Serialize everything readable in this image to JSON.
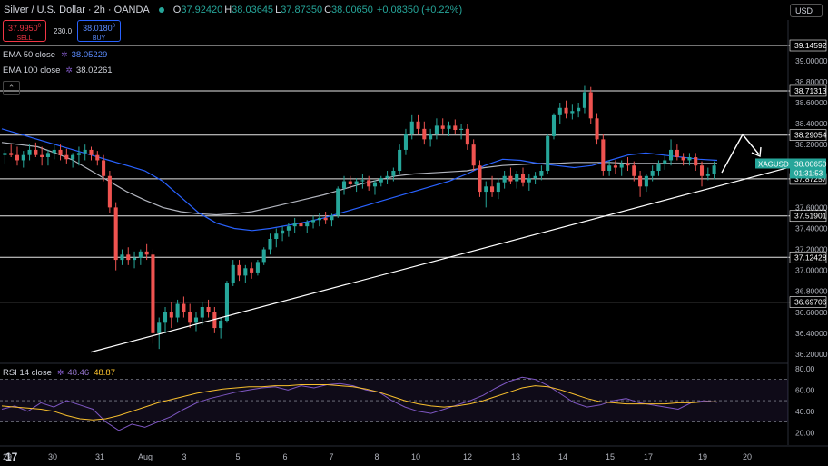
{
  "header": {
    "symbol": "Silver / U.S. Dollar · 2h · OANDA",
    "open_label": "O",
    "open": "37.92420",
    "high_label": "H",
    "high": "38.03645",
    "low_label": "L",
    "low": "37.87350",
    "close_label": "C",
    "close": "38.00650",
    "change": "+0.08350 (+0.22%)"
  },
  "trade": {
    "sell_price": "37.9950",
    "sell_sup": "0",
    "sell_label": "SELL",
    "spread": "230.0",
    "buy_price": "38.0180",
    "buy_sup": "0",
    "buy_label": "BUY"
  },
  "indicators": {
    "ema50_label": "EMA 50 close",
    "ema50_value": "38.05229",
    "ema100_label": "EMA 100 close",
    "ema100_value": "38.02261",
    "rsi_label": "RSI 14 close",
    "rsi_value": "48.46",
    "rsi_ma_value": "48.87"
  },
  "currency": "USD",
  "collapse_glyph": "⌃",
  "logo": "17",
  "colors": {
    "up": "#26a69a",
    "down": "#ef5350",
    "ema50": "#2962ff",
    "ema100": "#b2b5be",
    "rsi": "#7e57c2",
    "rsi_ma": "#f9c02d",
    "level": "#ffffff",
    "price_tag": "#26a69a"
  },
  "chart_data": [
    {
      "type": "candlestick",
      "symbol": "XAGUSD",
      "y_axis": {
        "ticks": [
          "39.00000",
          "38.80000",
          "38.60000",
          "38.40000",
          "38.20000",
          "37.60000",
          "37.40000",
          "37.20000",
          "37.00000",
          "36.80000",
          "36.60000",
          "36.40000",
          "36.20000"
        ],
        "range": [
          36.13,
          39.25
        ]
      },
      "x_axis": {
        "ticks": [
          "29",
          "30",
          "31",
          "Aug",
          "3",
          "5",
          "6",
          "7",
          "8",
          "10",
          "12",
          "13",
          "14",
          "15",
          "17",
          "19",
          "20"
        ]
      },
      "horizontal_levels": [
        39.14592,
        38.71313,
        38.29054,
        37.87257,
        37.51901,
        37.12428,
        36.69706
      ],
      "level_labels": [
        "39.14592",
        "38.71313",
        "38.29054",
        "37.87257",
        "37.51901",
        "37.12428",
        "36.69706"
      ],
      "last_price": {
        "symbol": "XAGUSD",
        "price": "38.00650",
        "countdown": "01:31:53"
      },
      "trendline": {
        "from": [
          "31",
          36.22
        ],
        "to": [
          "20",
          37.98
        ]
      },
      "projection_arrow": true,
      "ohlc": [
        [
          38.1,
          38.15,
          38.02,
          38.12
        ],
        [
          38.12,
          38.2,
          38.08,
          38.1
        ],
        [
          38.1,
          38.18,
          38.0,
          38.05
        ],
        [
          38.05,
          38.14,
          37.98,
          38.1
        ],
        [
          38.1,
          38.2,
          38.05,
          38.15
        ],
        [
          38.15,
          38.22,
          38.08,
          38.1
        ],
        [
          38.1,
          38.18,
          38.0,
          38.08
        ],
        [
          38.08,
          38.15,
          38.0,
          38.12
        ],
        [
          38.12,
          38.2,
          38.06,
          38.15
        ],
        [
          38.15,
          38.2,
          38.05,
          38.1
        ],
        [
          38.1,
          38.16,
          38.02,
          38.06
        ],
        [
          38.06,
          38.12,
          37.98,
          38.1
        ],
        [
          38.1,
          38.18,
          38.0,
          38.12
        ],
        [
          38.12,
          38.2,
          38.05,
          38.15
        ],
        [
          38.15,
          38.18,
          38.05,
          38.1
        ],
        [
          38.1,
          38.14,
          38.0,
          38.05
        ],
        [
          38.05,
          38.1,
          37.85,
          37.9
        ],
        [
          37.9,
          37.95,
          37.55,
          37.6
        ],
        [
          37.6,
          37.65,
          37.0,
          37.1
        ],
        [
          37.1,
          37.2,
          37.05,
          37.15
        ],
        [
          37.15,
          37.22,
          37.05,
          37.1
        ],
        [
          37.1,
          37.18,
          37.02,
          37.12
        ],
        [
          37.12,
          37.2,
          37.05,
          37.18
        ],
        [
          37.18,
          37.25,
          37.1,
          37.15
        ],
        [
          37.15,
          37.2,
          36.3,
          36.4
        ],
        [
          36.4,
          36.55,
          36.25,
          36.5
        ],
        [
          36.5,
          36.65,
          36.4,
          36.6
        ],
        [
          36.6,
          36.7,
          36.45,
          36.55
        ],
        [
          36.55,
          36.72,
          36.5,
          36.68
        ],
        [
          36.68,
          36.75,
          36.55,
          36.6
        ],
        [
          36.6,
          36.68,
          36.45,
          36.5
        ],
        [
          36.5,
          36.6,
          36.42,
          36.55
        ],
        [
          36.55,
          36.7,
          36.48,
          36.65
        ],
        [
          36.65,
          36.72,
          36.55,
          36.6
        ],
        [
          36.6,
          36.65,
          36.4,
          36.45
        ],
        [
          36.45,
          36.55,
          36.35,
          36.52
        ],
        [
          36.52,
          36.9,
          36.5,
          36.88
        ],
        [
          36.88,
          37.1,
          36.85,
          37.05
        ],
        [
          37.05,
          37.1,
          36.9,
          36.95
        ],
        [
          36.95,
          37.05,
          36.88,
          37.02
        ],
        [
          37.02,
          37.08,
          36.92,
          36.98
        ],
        [
          36.98,
          37.1,
          36.95,
          37.08
        ],
        [
          37.08,
          37.22,
          37.05,
          37.2
        ],
        [
          37.2,
          37.35,
          37.15,
          37.3
        ],
        [
          37.3,
          37.4,
          37.22,
          37.35
        ],
        [
          37.35,
          37.42,
          37.28,
          37.38
        ],
        [
          37.38,
          37.45,
          37.32,
          37.42
        ],
        [
          37.42,
          37.5,
          37.36,
          37.45
        ],
        [
          37.45,
          37.5,
          37.38,
          37.42
        ],
        [
          37.42,
          37.48,
          37.36,
          37.46
        ],
        [
          37.46,
          37.52,
          37.4,
          37.48
        ],
        [
          37.48,
          37.55,
          37.42,
          37.5
        ],
        [
          37.5,
          37.56,
          37.44,
          37.48
        ],
        [
          37.48,
          37.54,
          37.42,
          37.52
        ],
        [
          37.52,
          37.8,
          37.5,
          37.78
        ],
        [
          37.78,
          37.9,
          37.72,
          37.85
        ],
        [
          37.85,
          37.9,
          37.78,
          37.82
        ],
        [
          37.82,
          37.88,
          37.75,
          37.85
        ],
        [
          37.85,
          37.92,
          37.78,
          37.86
        ],
        [
          37.86,
          37.9,
          37.76,
          37.8
        ],
        [
          37.8,
          37.86,
          37.72,
          37.84
        ],
        [
          37.84,
          37.9,
          37.8,
          37.88
        ],
        [
          37.88,
          37.95,
          37.82,
          37.9
        ],
        [
          37.9,
          37.98,
          37.85,
          37.95
        ],
        [
          37.95,
          38.2,
          37.92,
          38.15
        ],
        [
          38.15,
          38.35,
          38.1,
          38.3
        ],
        [
          38.3,
          38.48,
          38.25,
          38.42
        ],
        [
          38.42,
          38.48,
          38.3,
          38.35
        ],
        [
          38.35,
          38.42,
          38.2,
          38.25
        ],
        [
          38.25,
          38.35,
          38.18,
          38.3
        ],
        [
          38.3,
          38.45,
          38.25,
          38.38
        ],
        [
          38.38,
          38.45,
          38.3,
          38.35
        ],
        [
          38.35,
          38.42,
          38.28,
          38.38
        ],
        [
          38.38,
          38.44,
          38.3,
          38.34
        ],
        [
          38.34,
          38.4,
          38.25,
          38.35
        ],
        [
          38.35,
          38.4,
          38.15,
          38.2
        ],
        [
          38.2,
          38.25,
          37.95,
          38.0
        ],
        [
          38.0,
          38.05,
          37.7,
          37.75
        ],
        [
          37.75,
          37.85,
          37.6,
          37.8
        ],
        [
          37.8,
          37.9,
          37.7,
          37.75
        ],
        [
          37.75,
          37.88,
          37.68,
          37.84
        ],
        [
          37.84,
          37.95,
          37.78,
          37.9
        ],
        [
          37.9,
          37.98,
          37.82,
          37.85
        ],
        [
          37.85,
          37.95,
          37.78,
          37.92
        ],
        [
          37.92,
          37.98,
          37.8,
          37.84
        ],
        [
          37.84,
          37.92,
          37.76,
          37.88
        ],
        [
          37.88,
          37.94,
          37.82,
          37.9
        ],
        [
          37.9,
          38.0,
          37.86,
          37.95
        ],
        [
          37.95,
          38.3,
          37.92,
          38.28
        ],
        [
          38.28,
          38.5,
          38.25,
          38.48
        ],
        [
          38.48,
          38.6,
          38.4,
          38.55
        ],
        [
          38.55,
          38.62,
          38.45,
          38.5
        ],
        [
          38.5,
          38.58,
          38.44,
          38.52
        ],
        [
          38.52,
          38.6,
          38.46,
          38.55
        ],
        [
          38.55,
          38.76,
          38.5,
          38.7
        ],
        [
          38.7,
          38.75,
          38.4,
          38.45
        ],
        [
          38.45,
          38.5,
          38.2,
          38.25
        ],
        [
          38.25,
          38.3,
          37.9,
          37.95
        ],
        [
          37.95,
          38.05,
          37.9,
          38.0
        ],
        [
          38.0,
          38.05,
          37.92,
          37.98
        ],
        [
          37.98,
          38.05,
          37.9,
          38.02
        ],
        [
          38.02,
          38.08,
          37.95,
          38.0
        ],
        [
          38.0,
          38.04,
          37.85,
          37.9
        ],
        [
          37.9,
          37.95,
          37.7,
          37.8
        ],
        [
          37.8,
          37.92,
          37.75,
          37.9
        ],
        [
          37.9,
          38.0,
          37.85,
          37.95
        ],
        [
          37.95,
          38.05,
          37.9,
          38.02
        ],
        [
          38.02,
          38.1,
          37.96,
          38.05
        ],
        [
          38.05,
          38.25,
          38.0,
          38.15
        ],
        [
          38.15,
          38.2,
          38.05,
          38.08
        ],
        [
          38.08,
          38.12,
          38.0,
          38.05
        ],
        [
          38.05,
          38.12,
          38.0,
          38.08
        ],
        [
          38.08,
          38.12,
          37.95,
          38.0
        ],
        [
          38.0,
          38.04,
          37.8,
          37.9
        ],
        [
          37.9,
          37.98,
          37.86,
          37.92
        ],
        [
          37.92,
          38.04,
          37.87,
          38.0
        ]
      ],
      "ema50": [
        38.35,
        38.3,
        38.25,
        38.2,
        38.15,
        38.1,
        38.05,
        38.0,
        37.95,
        37.85,
        37.7,
        37.55,
        37.45,
        37.4,
        37.38,
        37.4,
        37.43,
        37.46,
        37.5,
        37.55,
        37.6,
        37.65,
        37.7,
        37.75,
        37.8,
        37.85,
        37.92,
        38.0,
        38.06,
        38.05,
        38.02,
        38.0,
        37.98,
        38.0,
        38.05,
        38.1,
        38.12,
        38.1,
        38.08,
        38.06,
        38.05
      ],
      "ema100": [
        38.22,
        38.2,
        38.18,
        38.12,
        38.05,
        37.95,
        37.85,
        37.75,
        37.67,
        37.6,
        37.56,
        37.54,
        37.53,
        37.54,
        37.56,
        37.6,
        37.64,
        37.68,
        37.72,
        37.77,
        37.82,
        37.86,
        37.9,
        37.92,
        37.93,
        37.94,
        37.95,
        37.98,
        38.0,
        38.01,
        38.02,
        38.02,
        38.03,
        38.03,
        38.03,
        38.02,
        38.02,
        38.02,
        38.02,
        38.02,
        38.02
      ],
      "legend": [
        "EMA 50 close 38.05229",
        "EMA 100 close 38.02261"
      ]
    },
    {
      "type": "line",
      "name": "RSI 14 close",
      "y_axis": {
        "ticks": [
          "80.00",
          "60.00",
          "40.00",
          "20.00"
        ],
        "range": [
          10,
          85
        ]
      },
      "bands": [
        70,
        50,
        30
      ],
      "rsi": [
        42,
        45,
        40,
        48,
        44,
        50,
        46,
        42,
        30,
        22,
        28,
        25,
        30,
        35,
        42,
        48,
        52,
        55,
        58,
        60,
        62,
        63,
        60,
        64,
        62,
        65,
        66,
        64,
        60,
        58,
        50,
        44,
        40,
        38,
        42,
        46,
        50,
        55,
        62,
        68,
        72,
        70,
        64,
        56,
        48,
        44,
        46,
        50,
        52,
        48,
        46,
        44,
        42,
        48,
        50,
        48.46
      ],
      "rsi_ma": [
        45,
        44,
        43,
        42,
        40,
        36,
        33,
        32,
        33,
        36,
        40,
        44,
        48,
        51,
        54,
        57,
        59,
        61,
        62,
        63,
        63,
        64,
        64,
        65,
        65,
        65,
        64,
        63,
        61,
        58,
        54,
        50,
        47,
        45,
        44,
        45,
        47,
        50,
        54,
        58,
        62,
        64,
        63,
        60,
        56,
        52,
        49,
        48,
        47,
        47,
        47,
        47,
        48,
        48,
        49,
        48.87
      ],
      "values": [
        "48.46",
        "48.87"
      ]
    }
  ]
}
